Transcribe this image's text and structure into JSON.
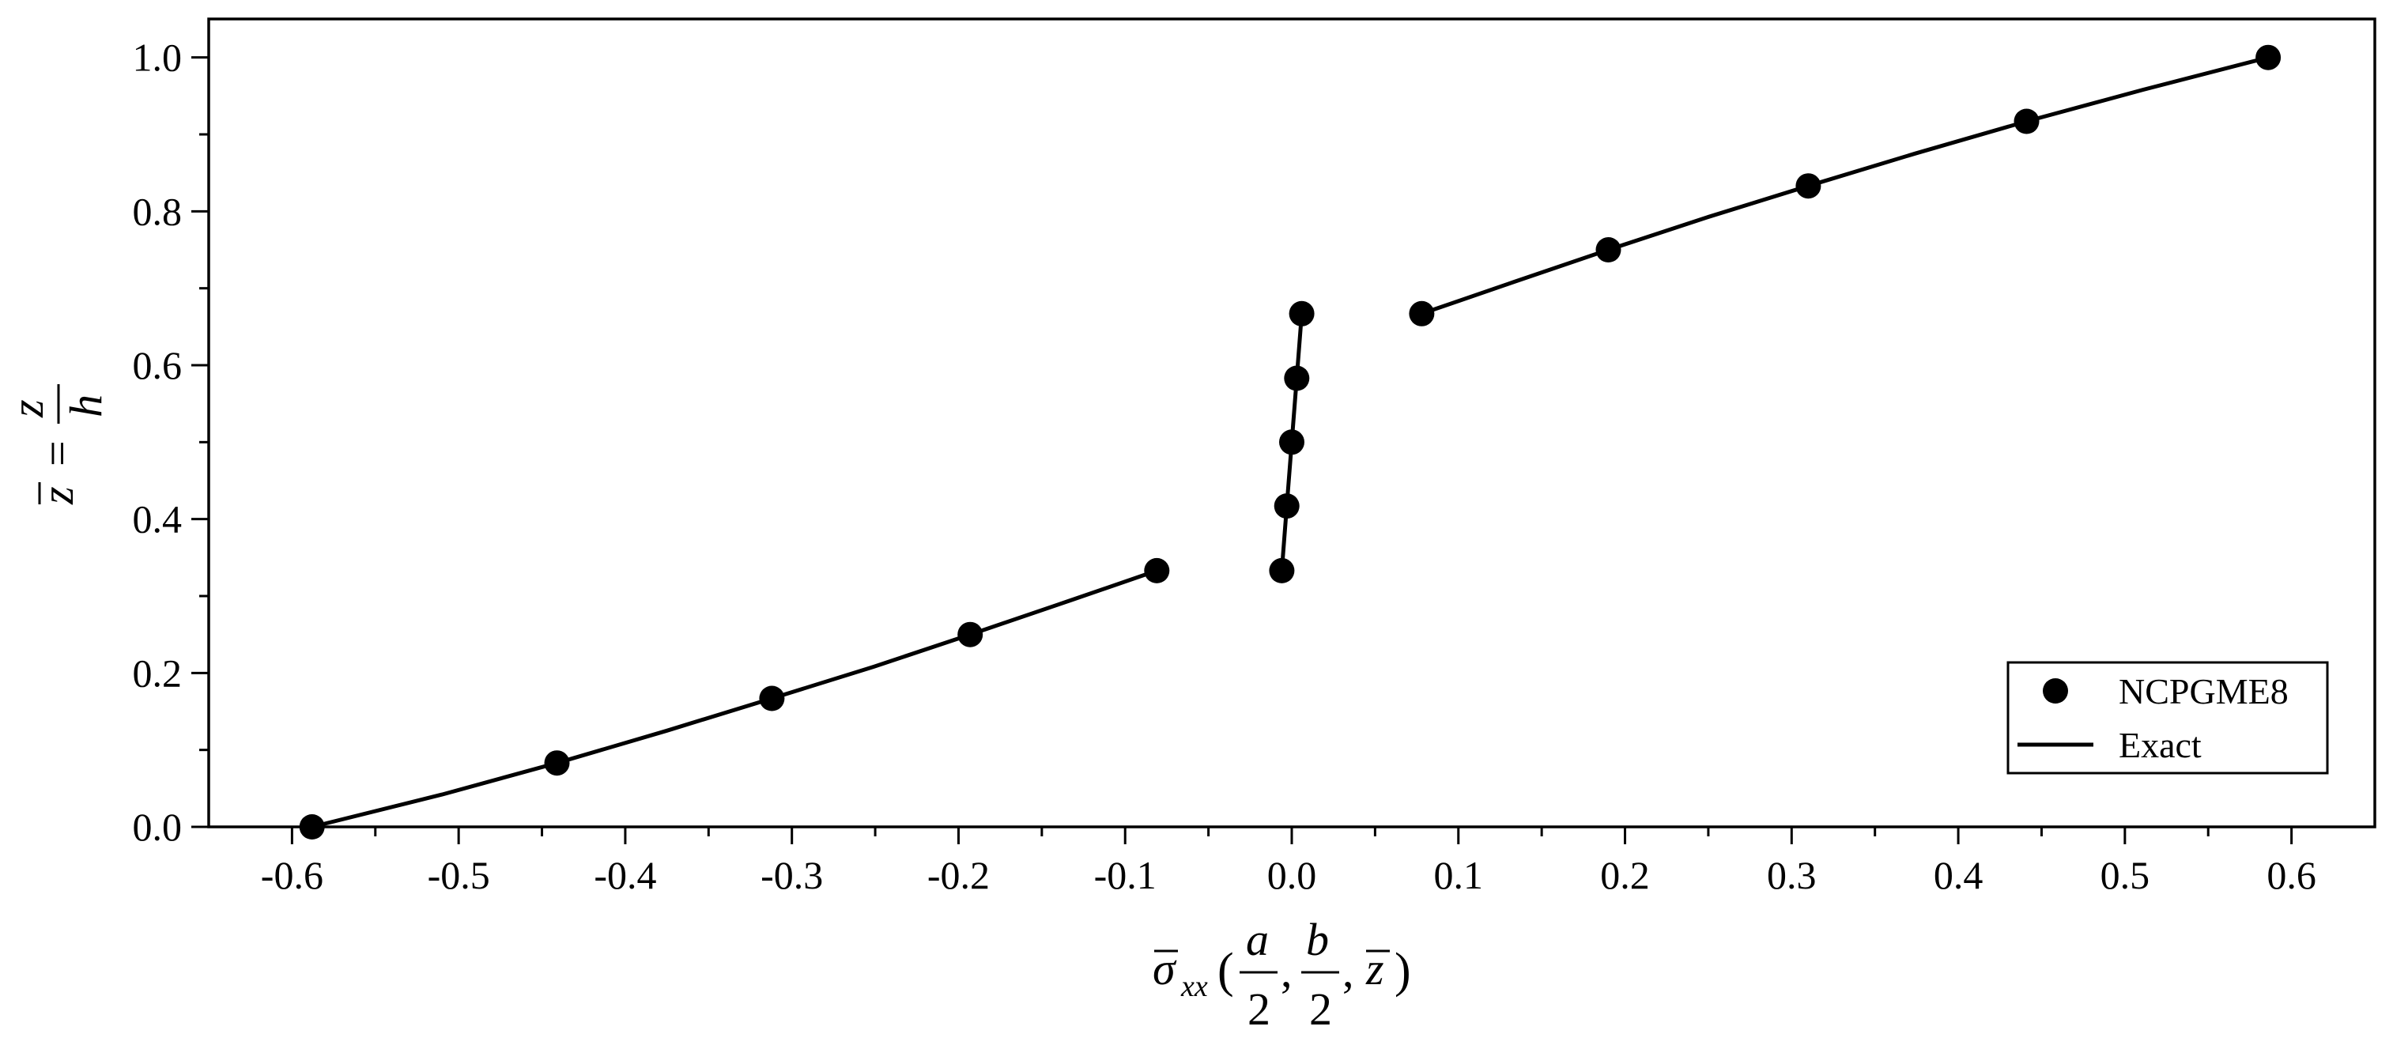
{
  "chart_data": {
    "type": "scatter",
    "xlabel": {
      "sigma": "σ",
      "subscript": "xx",
      "open_paren": "(",
      "a": "a",
      "b": "b",
      "two_1": "2",
      "two_2": "2",
      "comma_1": ",",
      "comma_2": ",",
      "zbar": "z",
      "close_paren": ")"
    },
    "ylabel": {
      "zbar": "z",
      "equals": "=",
      "z": "z",
      "h": "h"
    },
    "xlim": [
      -0.65,
      0.65
    ],
    "ylim": [
      0.0,
      1.05
    ],
    "xticks": [
      -0.6,
      -0.5,
      -0.4,
      -0.3,
      -0.2,
      -0.1,
      0.0,
      0.1,
      0.2,
      0.3,
      0.4,
      0.5,
      0.6
    ],
    "xtick_labels": [
      "-0.6",
      "-0.5",
      "-0.4",
      "-0.3",
      "-0.2",
      "-0.1",
      "0.0",
      "0.1",
      "0.2",
      "0.3",
      "0.4",
      "0.5",
      "0.6"
    ],
    "yticks": [
      0.0,
      0.2,
      0.4,
      0.6,
      0.8,
      1.0
    ],
    "ytick_labels": [
      "0.0",
      "0.2",
      "0.4",
      "0.6",
      "0.8",
      "1.0"
    ],
    "grid": false,
    "legend_position": "bottom-right",
    "series": [
      {
        "name": "NCPGME8",
        "kind": "marker",
        "color": "#000000",
        "points": [
          [
            -0.588,
            0.0
          ],
          [
            -0.441,
            0.083
          ],
          [
            -0.312,
            0.167
          ],
          [
            -0.193,
            0.25
          ],
          [
            -0.081,
            0.333
          ],
          [
            -0.006,
            0.333
          ],
          [
            -0.003,
            0.417
          ],
          [
            0.0,
            0.5
          ],
          [
            0.003,
            0.583
          ],
          [
            0.006,
            0.667
          ],
          [
            0.078,
            0.667
          ],
          [
            0.19,
            0.75
          ],
          [
            0.31,
            0.833
          ],
          [
            0.441,
            0.917
          ],
          [
            0.586,
            1.0
          ]
        ]
      },
      {
        "name": "Exact",
        "kind": "line",
        "color": "#000000",
        "segments": [
          [
            [
              -0.588,
              0.0
            ],
            [
              -0.51,
              0.042
            ],
            [
              -0.441,
              0.083
            ],
            [
              -0.375,
              0.125
            ],
            [
              -0.312,
              0.167
            ],
            [
              -0.251,
              0.208
            ],
            [
              -0.193,
              0.25
            ],
            [
              -0.136,
              0.292
            ],
            [
              -0.081,
              0.333
            ]
          ],
          [
            [
              -0.006,
              0.333
            ],
            [
              -0.003,
              0.417
            ],
            [
              0.0,
              0.5
            ],
            [
              0.003,
              0.583
            ],
            [
              0.006,
              0.667
            ]
          ],
          [
            [
              0.078,
              0.667
            ],
            [
              0.133,
              0.708
            ],
            [
              0.19,
              0.75
            ],
            [
              0.249,
              0.792
            ],
            [
              0.31,
              0.833
            ],
            [
              0.374,
              0.875
            ],
            [
              0.441,
              0.917
            ],
            [
              0.511,
              0.958
            ],
            [
              0.586,
              1.0
            ]
          ]
        ]
      }
    ]
  }
}
